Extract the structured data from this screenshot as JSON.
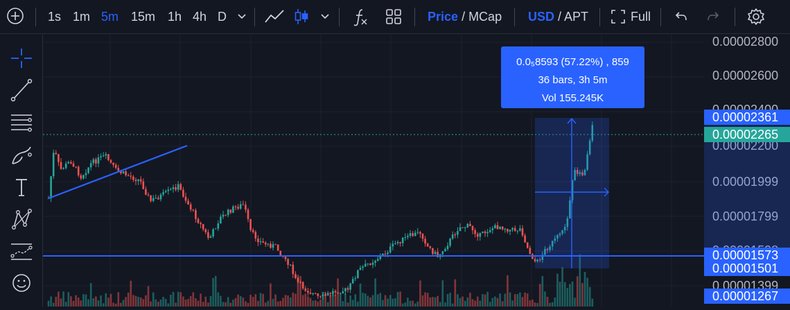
{
  "toolbar": {
    "intervals": [
      "1s",
      "1m",
      "5m",
      "15m",
      "1h",
      "4h",
      "D"
    ],
    "active_interval": "5m",
    "price_label": "Price",
    "mcap_label": "/ MCap",
    "usd_label": "USD",
    "apt_label": "/ APT",
    "full_label": "Full"
  },
  "tooltip": {
    "line1": "0.0₅8593 (57.22%) , 859",
    "line2": "36 bars, 3h 5m",
    "line3": "Vol 155.245K"
  },
  "price_scale": {
    "ticks": [
      "0.00002800",
      "0.00002600",
      "0.00002400",
      "0.00002200",
      "0.00001999",
      "0.00001799",
      "0.00001598",
      "0.00001399"
    ],
    "tags": [
      {
        "value": "0.00002361",
        "color": "#2962ff"
      },
      {
        "value": "0.00002265",
        "color": "#26a69a"
      },
      {
        "value": "0.00001573",
        "color": "#2962ff"
      },
      {
        "value": "0.00001501",
        "color": "#2962ff"
      },
      {
        "value": "0.00001267",
        "color": "#2962ff"
      }
    ]
  },
  "colors": {
    "up": "#26a69a",
    "down": "#ef5350",
    "accent": "#2962ff",
    "background": "#131722"
  },
  "left_tools": [
    "crosshair-icon",
    "trend-line-icon",
    "fib-lines-icon",
    "brush-icon",
    "text-icon",
    "pattern-icon",
    "forecast-icon",
    "emoji-icon"
  ]
}
